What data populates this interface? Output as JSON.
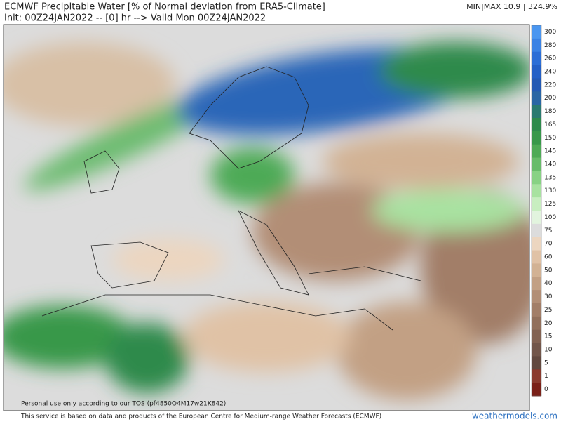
{
  "header": {
    "title": "ECMWF Precipitable Water [% of Normal deviation from ERA5-Climate]",
    "subtitle": "Init: 00Z24JAN2022 -- [0] hr --> Valid Mon 00Z24JAN2022",
    "minmax": "MIN|MAX 10.9 | 324.9%"
  },
  "map": {
    "watermark": "Personal use only according to our TOS (pf4850Q4M17w21K842)"
  },
  "colorbar": {
    "labels": [
      "300",
      "280",
      "260",
      "240",
      "220",
      "200",
      "180",
      "165",
      "150",
      "145",
      "140",
      "135",
      "130",
      "125",
      "100",
      "75",
      "70",
      "60",
      "50",
      "40",
      "30",
      "25",
      "20",
      "15",
      "10",
      "5",
      "1",
      "0"
    ],
    "colors": [
      "#4a96f0",
      "#3a82e4",
      "#2c6ed6",
      "#2460c6",
      "#245ab4",
      "#2a66a4",
      "#2a7a70",
      "#2e8a4c",
      "#38984a",
      "#4eaa56",
      "#68bc6a",
      "#88d284",
      "#a8e2a0",
      "#c8eec0",
      "#e2f4de",
      "#dcdcdc",
      "#ecd6c0",
      "#e0c2a6",
      "#d2b294",
      "#c2a084",
      "#b28e76",
      "#a27e68",
      "#92705c",
      "#826252",
      "#72564a",
      "#62493f",
      "#8a3a2e",
      "#7a2018"
    ]
  },
  "footer": {
    "disclaimer": "This service is based on data and products of the European Centre for Medium-range Weather Forecasts (ECMWF)",
    "site": "weathermodels.com"
  }
}
